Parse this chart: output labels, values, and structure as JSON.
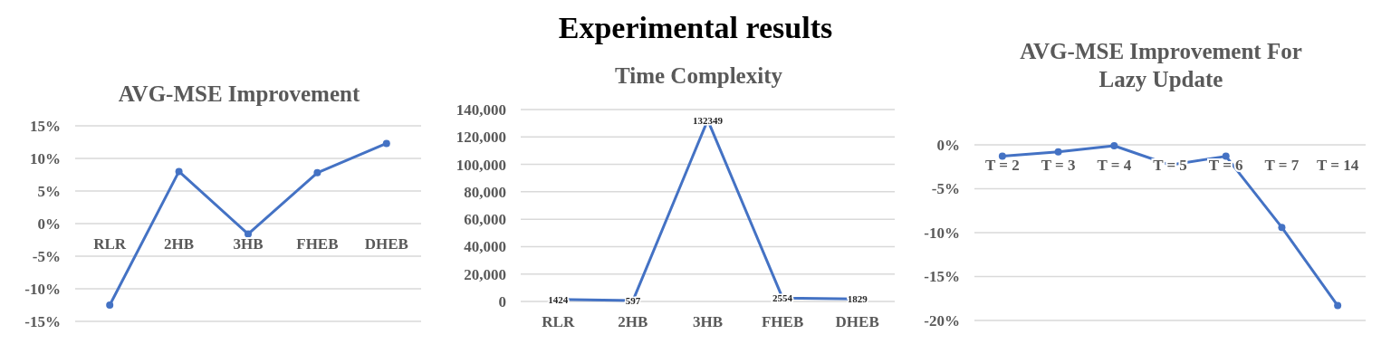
{
  "chart_data": [
    {
      "type": "other",
      "title": "Experimental results"
    },
    {
      "type": "line",
      "title": "AVG-MSE Improvement",
      "categories": [
        "RLR",
        "2HB",
        "3HB",
        "FHEB",
        "DHEB"
      ],
      "series": [
        {
          "color": "#4472c4",
          "values": [
            -12.5,
            8,
            -1.6,
            7.8,
            12.3
          ]
        }
      ],
      "ylim": [
        -15,
        15
      ],
      "yticks": [
        {
          "value": -15,
          "label": "-15%"
        },
        {
          "value": -10,
          "label": "-10%"
        },
        {
          "value": -5,
          "label": "-5%"
        },
        {
          "value": 0,
          "label": "0%"
        },
        {
          "value": 5,
          "label": "5%"
        },
        {
          "value": 10,
          "label": "10%"
        },
        {
          "value": 15,
          "label": "15%"
        }
      ],
      "grid": "y",
      "marker": "circle"
    },
    {
      "type": "line",
      "title": "Time Complexity",
      "categories": [
        "RLR",
        "2HB",
        "3HB",
        "FHEB",
        "DHEB"
      ],
      "series": [
        {
          "color": "#4472c4",
          "values": [
            1424,
            597,
            132349,
            2554,
            1829
          ]
        }
      ],
      "ylim": [
        0,
        140000
      ],
      "yticks": [
        0,
        {
          "value": 20000,
          "label": "20,000"
        },
        {
          "value": 40000,
          "label": "40,000"
        },
        {
          "value": 60000,
          "label": "60,000"
        },
        {
          "value": 80000,
          "label": "80,000"
        },
        {
          "value": 100000,
          "label": "100,000"
        },
        {
          "value": 120000,
          "label": "120,000"
        },
        {
          "value": 140000,
          "label": "140,000"
        }
      ],
      "grid": "y",
      "marker": "none",
      "data_labels": true
    },
    {
      "type": "line",
      "title": "AVG-MSE Improvement For Lazy Update",
      "categories": [
        "T = 2",
        "T = 3",
        "T = 4",
        "T = 5",
        "T = 6",
        "T = 7",
        "T = 14"
      ],
      "series": [
        {
          "color": "#4472c4",
          "values": [
            -1.3,
            -0.8,
            -0.1,
            -2.3,
            -1.3,
            -9.4,
            -18.3
          ]
        }
      ],
      "ylim": [
        -20,
        0
      ],
      "yticks": [
        {
          "value": -20,
          "label": "-20%"
        },
        {
          "value": -15,
          "label": "-15%"
        },
        {
          "value": -10,
          "label": "-10%"
        },
        {
          "value": -5,
          "label": "-5%"
        },
        {
          "value": 0,
          "label": "0%"
        }
      ],
      "grid": "y",
      "marker": "circle"
    }
  ]
}
